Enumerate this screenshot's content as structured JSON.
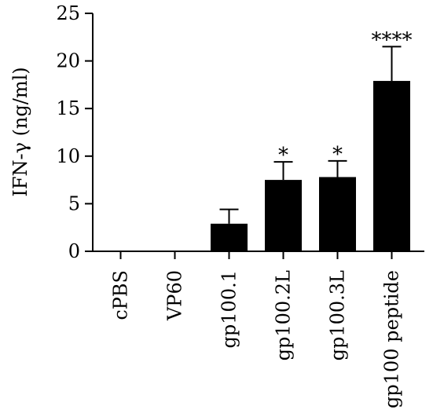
{
  "chart_data": {
    "type": "bar",
    "title": "",
    "xlabel": "",
    "ylabel": "IFN-γ (ng/ml)",
    "ylim": [
      0,
      25
    ],
    "yticks": [
      0,
      5,
      10,
      15,
      20,
      25
    ],
    "grid": false,
    "legend": "none",
    "bar_color": "#000000",
    "categories": [
      "cPBS",
      "VP60",
      "gp100.1",
      "gp100.2L",
      "gp100.3L",
      "gp100 peptide"
    ],
    "values": [
      0,
      0,
      2.9,
      7.5,
      7.8,
      17.9
    ],
    "error_upper": [
      0,
      0,
      1.5,
      1.9,
      1.7,
      3.6
    ],
    "significance": [
      "",
      "",
      "",
      "*",
      "*",
      "****"
    ]
  }
}
